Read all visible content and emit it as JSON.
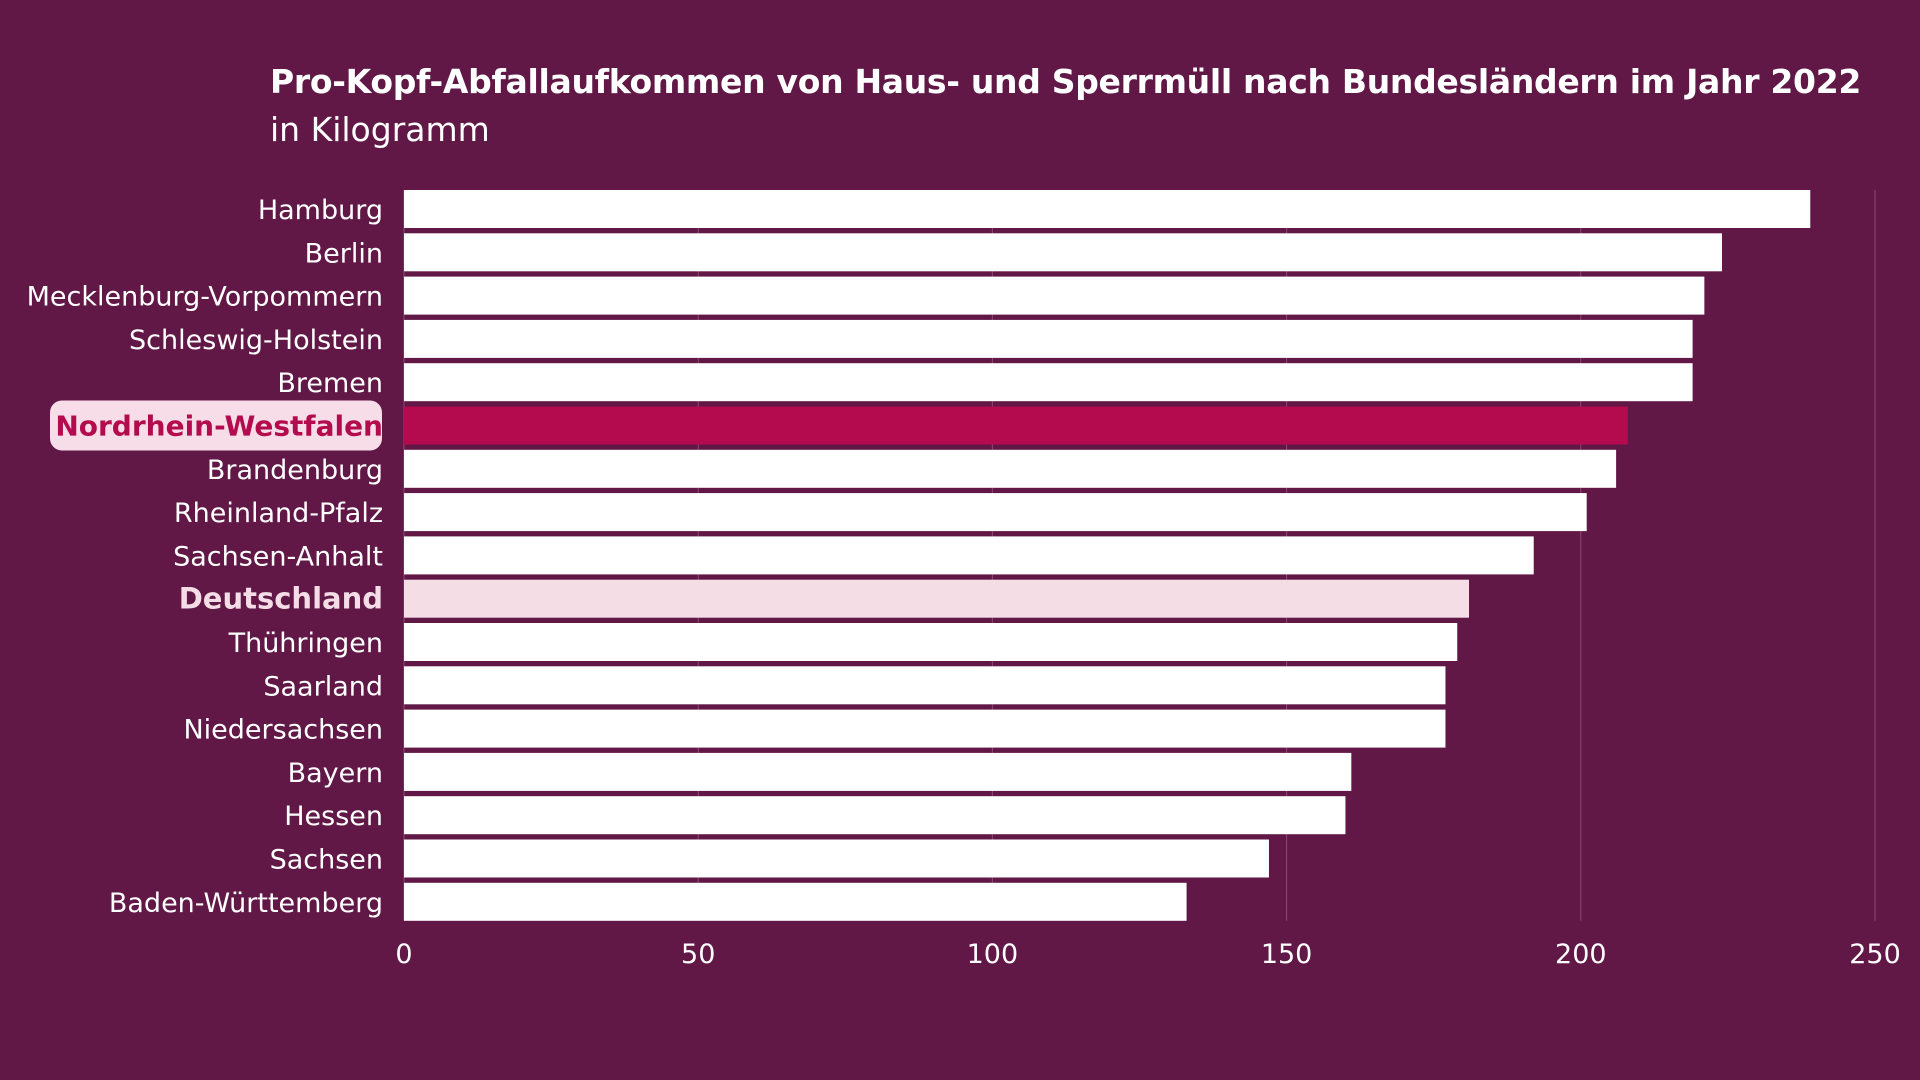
{
  "title": "Pro-Kopf-Abfallaufkommen von Haus- und Sperrmüll nach Bundesländern im Jahr 2022",
  "subtitle": "in Kilogramm",
  "colors": {
    "background": "#611846",
    "bar": "#ffffff",
    "highlight_bar": "#b30b4e",
    "highlight_label_bg": "#f6dde7",
    "highlight_label_text": "#b30b4e",
    "national_bar": "#f4dde5",
    "grid": "#8a4a72"
  },
  "chart_data": {
    "type": "bar",
    "orientation": "horizontal",
    "title": "Pro-Kopf-Abfallaufkommen von Haus- und Sperrmüll nach Bundesländern im Jahr 2022",
    "subtitle": "in Kilogramm",
    "xlabel": "",
    "ylabel": "",
    "xlim": [
      0,
      250
    ],
    "xticks": [
      0,
      50,
      100,
      150,
      200,
      250
    ],
    "grid": true,
    "categories": [
      "Hamburg",
      "Berlin",
      "Mecklenburg-Vorpommern",
      "Schleswig-Holstein",
      "Bremen",
      "Nordrhein-Westfalen",
      "Brandenburg",
      "Rheinland-Pfalz",
      "Sachsen-Anhalt",
      "Deutschland",
      "Thühringen",
      "Saarland",
      "Niedersachsen",
      "Bayern",
      "Hessen",
      "Sachsen",
      "Baden-Württemberg"
    ],
    "values": [
      239,
      224,
      221,
      219,
      219,
      208,
      206,
      201,
      192,
      181,
      179,
      177,
      177,
      161,
      160,
      147,
      133
    ],
    "highlight": "Nordrhein-Westfalen",
    "national": "Deutschland"
  }
}
